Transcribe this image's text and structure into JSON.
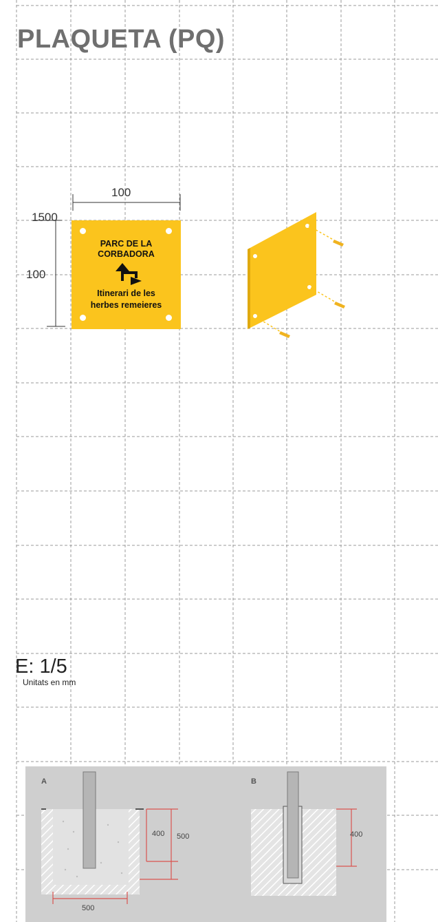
{
  "title": "PLAQUETA (PQ)",
  "dimensions": {
    "width_top": "100",
    "height_left": "100",
    "height_total": "1500"
  },
  "plate": {
    "line1": "PARC DE LA",
    "line2": "CORBADORA",
    "line3": "Itinerari de les",
    "line4": "herbes remeieres",
    "arrow_icon": "turn-arrow-icon",
    "color": "#fbc41d"
  },
  "scale": {
    "label": "E: 1/5",
    "units": "Unitats en mm"
  },
  "foundation": {
    "detail_a_label": "A",
    "detail_b_label": "B",
    "a_depth": "400",
    "a_total": "500",
    "a_width": "500",
    "b_depth": "400",
    "dimension_color": "#d9534f"
  }
}
